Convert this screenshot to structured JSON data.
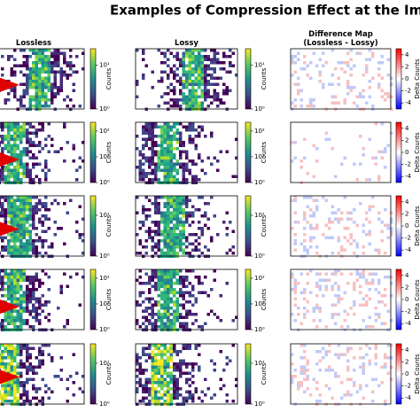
{
  "title": "Examples of Compression Effect at the Image L",
  "chart_data": [
    {
      "type": "heatmap",
      "title": "Lossless",
      "colorbar_label": "Counts",
      "colormap": "viridis",
      "log_scale": true,
      "clim": [
        1,
        24
      ],
      "cticks": [
        {
          "value": 10,
          "label": "10¹"
        },
        {
          "value": 1,
          "label": "10⁰"
        }
      ]
    },
    {
      "type": "heatmap",
      "title": "Lossy",
      "colorbar_label": "Counts",
      "colormap": "viridis",
      "log_scale": true,
      "clim": [
        1,
        24
      ],
      "cticks": [
        {
          "value": 10,
          "label": "10¹"
        },
        {
          "value": 1,
          "label": "10⁰"
        }
      ]
    },
    {
      "type": "heatmap",
      "title": "Difference Map\n(Lossless - Lossy)",
      "colorbar_label": "Delta Counts",
      "colormap": "bwr",
      "log_scale": false,
      "clim": [
        -5,
        5
      ],
      "cticks": [
        4,
        2,
        0,
        -2,
        -4
      ]
    },
    {
      "type": "heatmap",
      "colorbar_label": "Counts",
      "colormap": "viridis",
      "log_scale": true,
      "clim": [
        1,
        220
      ],
      "cticks": [
        {
          "value": 100,
          "label": "10²"
        },
        {
          "value": 10,
          "label": "10¹"
        },
        {
          "value": 1,
          "label": "10⁰"
        }
      ]
    },
    {
      "type": "heatmap",
      "colorbar_label": "Counts",
      "colormap": "viridis",
      "log_scale": true,
      "clim": [
        1,
        220
      ],
      "cticks": [
        {
          "value": 100,
          "label": "10²"
        },
        {
          "value": 10,
          "label": "10¹"
        },
        {
          "value": 1,
          "label": "10⁰"
        }
      ]
    },
    {
      "type": "heatmap",
      "colorbar_label": "Delta Counts",
      "colormap": "bwr",
      "log_scale": false,
      "clim": [
        -5,
        5
      ],
      "cticks": [
        4,
        2,
        0,
        -2,
        -4
      ]
    },
    {
      "type": "heatmap",
      "colorbar_label": "Counts",
      "colormap": "viridis",
      "log_scale": true,
      "clim": [
        1,
        30
      ],
      "cticks": [
        {
          "value": 10,
          "label": "10¹"
        },
        {
          "value": 1,
          "label": "10⁰"
        }
      ]
    },
    {
      "type": "heatmap",
      "colorbar_label": "Counts",
      "colormap": "viridis",
      "log_scale": true,
      "clim": [
        1,
        30
      ],
      "cticks": [
        {
          "value": 10,
          "label": "10¹"
        },
        {
          "value": 1,
          "label": "10⁰"
        }
      ]
    },
    {
      "type": "heatmap",
      "colorbar_label": "Delta Counts",
      "colormap": "bwr",
      "log_scale": false,
      "clim": [
        -5,
        5
      ],
      "cticks": [
        4,
        2,
        0,
        -2,
        -4
      ]
    },
    {
      "type": "heatmap",
      "colorbar_label": "Counts",
      "colormap": "viridis",
      "log_scale": true,
      "clim": [
        1,
        220
      ],
      "cticks": [
        {
          "value": 100,
          "label": "10²"
        },
        {
          "value": 10,
          "label": "10¹"
        },
        {
          "value": 1,
          "label": "10⁰"
        }
      ]
    },
    {
      "type": "heatmap",
      "colorbar_label": "Counts",
      "colormap": "viridis",
      "log_scale": true,
      "clim": [
        1,
        220
      ],
      "cticks": [
        {
          "value": 100,
          "label": "10²"
        },
        {
          "value": 10,
          "label": "10¹"
        },
        {
          "value": 1,
          "label": "10⁰"
        }
      ]
    },
    {
      "type": "heatmap",
      "colorbar_label": "Delta Counts",
      "colormap": "bwr",
      "log_scale": false,
      "clim": [
        -5,
        5
      ],
      "cticks": [
        4,
        2,
        0,
        -2,
        -4
      ]
    },
    {
      "type": "heatmap",
      "colorbar_label": "Counts",
      "colormap": "viridis",
      "log_scale": true,
      "clim": [
        1,
        30
      ],
      "cticks": [
        {
          "value": 10,
          "label": "10¹"
        },
        {
          "value": 1,
          "label": "10⁰"
        }
      ]
    },
    {
      "type": "heatmap",
      "colorbar_label": "Counts",
      "colormap": "viridis",
      "log_scale": true,
      "clim": [
        1,
        30
      ],
      "cticks": [
        {
          "value": 10,
          "label": "10¹"
        },
        {
          "value": 1,
          "label": "10⁰"
        }
      ]
    },
    {
      "type": "heatmap",
      "colorbar_label": "Delta Counts",
      "colormap": "bwr",
      "log_scale": false,
      "clim": [
        -5,
        5
      ],
      "cticks": [
        4,
        2,
        0,
        -2,
        -4
      ]
    }
  ]
}
